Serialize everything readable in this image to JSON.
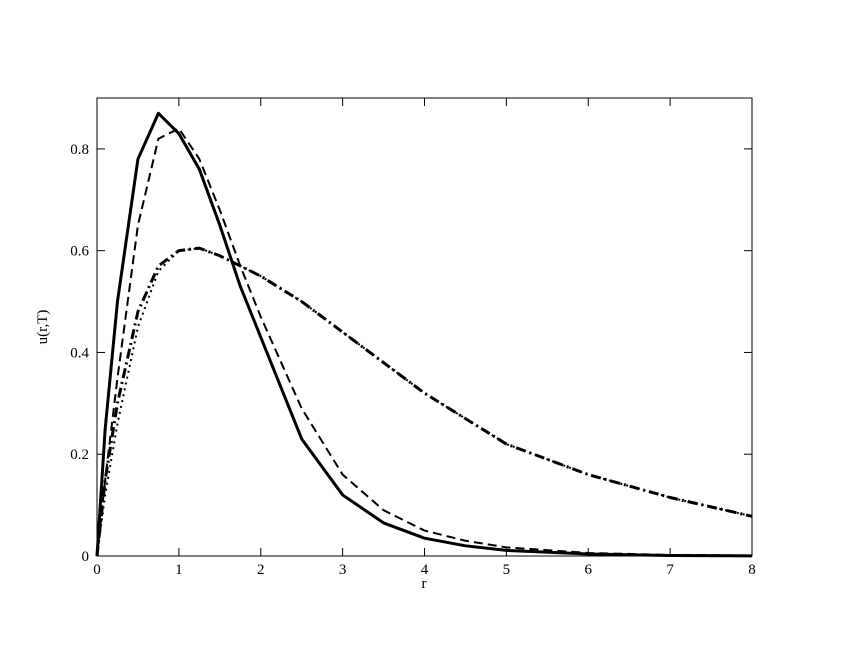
{
  "chart_data": {
    "type": "line",
    "x_label": "r",
    "y_label": "u(r,T)",
    "x": [
      0,
      0.1,
      0.25,
      0.5,
      0.75,
      1,
      1.25,
      1.5,
      1.75,
      2,
      2.5,
      3,
      3.5,
      4,
      4.5,
      5,
      6,
      7,
      8
    ],
    "series": [
      {
        "color": "#000000",
        "width": 3,
        "dash": "none",
        "values": [
          0,
          0.25,
          0.5,
          0.78,
          0.87,
          0.83,
          0.76,
          0.65,
          0.53,
          0.43,
          0.23,
          0.12,
          0.065,
          0.035,
          0.02,
          0.011,
          0.004,
          0.001,
          0.0003
        ]
      },
      {
        "color": "#000000",
        "width": 2,
        "dash": "9,5",
        "values": [
          0,
          0.15,
          0.35,
          0.65,
          0.82,
          0.84,
          0.78,
          0.68,
          0.57,
          0.47,
          0.29,
          0.16,
          0.09,
          0.05,
          0.03,
          0.017,
          0.006,
          0.002,
          0.001
        ]
      },
      {
        "color": "#000000",
        "width": 3,
        "dash": "10,4,2,4",
        "values": [
          0,
          0.15,
          0.3,
          0.48,
          0.57,
          0.6,
          0.605,
          0.59,
          0.57,
          0.55,
          0.5,
          0.44,
          0.38,
          0.32,
          0.27,
          0.22,
          0.16,
          0.115,
          0.078
        ]
      },
      {
        "color": "#000000",
        "width": 2,
        "dash": "2,4",
        "values": [
          0,
          0.12,
          0.26,
          0.45,
          0.56,
          0.6,
          0.605,
          0.59,
          0.57,
          0.55,
          0.5,
          0.44,
          0.38,
          0.32,
          0.27,
          0.22,
          0.16,
          0.115,
          0.078
        ]
      }
    ],
    "xlim": [
      0,
      8
    ],
    "xticks": [
      0,
      1,
      2,
      3,
      4,
      5,
      6,
      7,
      8
    ],
    "ylim": [
      0,
      0.9
    ],
    "yticks": [
      0,
      0.2,
      0.4,
      0.6,
      0.8
    ],
    "grid": false
  }
}
